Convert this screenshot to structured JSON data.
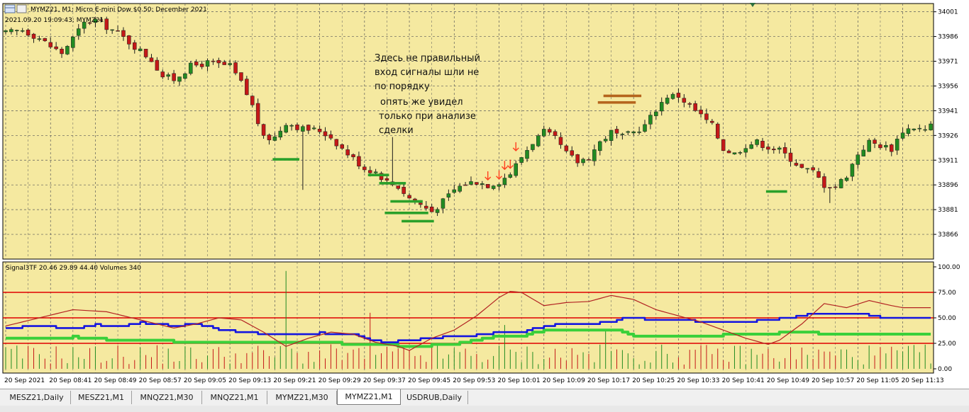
{
  "window": {
    "title": "MYMZ21, M1:  Micro E-mini Dow $0.50: December 2021",
    "last_tick": "2021.09.20 19:09:43; MYMZ21"
  },
  "annotation": {
    "lines_top": [
      "Здесь не правильный",
      "вход сигналы шли не",
      "по порядку"
    ],
    "lines_bottom": [
      "опять же увидел",
      "только при анализе",
      "сделки"
    ]
  },
  "colors": {
    "background": "#f5e9a0",
    "grid": "#5a5a5a",
    "bull": "#228b22",
    "bear": "#c41818",
    "wick": "#1c1c1c",
    "level_green": "#2aa02a",
    "level_brown": "#b5651d",
    "arrow": "#ff4020",
    "ind_red": "#b22222",
    "ind_blue": "#1414e0",
    "ind_green": "#3ad03a",
    "hline": "#e00000"
  },
  "chart_data": [
    {
      "type": "candlestick",
      "symbol": "MYMZ21",
      "timeframe": "M1",
      "y_ticks": [
        "34001",
        "33986",
        "33971",
        "33956",
        "33941",
        "33926",
        "33911",
        "33896",
        "33881",
        "33866"
      ],
      "ylim": [
        33851,
        34006
      ],
      "x_ticks": [
        "20 Sep 2021",
        "20 Sep 08:41",
        "20 Sep 08:49",
        "20 Sep 08:57",
        "20 Sep 09:05",
        "20 Sep 09:13",
        "20 Sep 09:21",
        "20 Sep 09:29",
        "20 Sep 09:37",
        "20 Sep 09:45",
        "20 Sep 09:53",
        "20 Sep 10:01",
        "20 Sep 10:09",
        "20 Sep 10:17",
        "20 Sep 10:25",
        "20 Sep 10:33",
        "20 Sep 10:41",
        "20 Sep 10:49",
        "20 Sep 10:57",
        "20 Sep 11:05",
        "20 Sep 11:13"
      ],
      "close_anchors": [
        [
          0,
          33988
        ],
        [
          3,
          33990
        ],
        [
          6,
          33985
        ],
        [
          8,
          33980
        ],
        [
          10,
          33976
        ],
        [
          12,
          33985
        ],
        [
          14,
          33994
        ],
        [
          16,
          33996
        ],
        [
          18,
          33992
        ],
        [
          20,
          33988
        ],
        [
          23,
          33980
        ],
        [
          26,
          33972
        ],
        [
          28,
          33962
        ],
        [
          30,
          33960
        ],
        [
          33,
          33968
        ],
        [
          36,
          33970
        ],
        [
          40,
          33968
        ],
        [
          42,
          33958
        ],
        [
          44,
          33944
        ],
        [
          46,
          33924
        ],
        [
          48,
          33925
        ],
        [
          50,
          33934
        ],
        [
          53,
          33930
        ],
        [
          56,
          33929
        ],
        [
          58,
          33925
        ],
        [
          60,
          33918
        ],
        [
          62,
          33912
        ],
        [
          64,
          33906
        ],
        [
          66,
          33904
        ],
        [
          68,
          33898
        ],
        [
          70,
          33895
        ],
        [
          72,
          33888
        ],
        [
          74,
          33884
        ],
        [
          76,
          33880
        ],
        [
          78,
          33886
        ],
        [
          80,
          33893
        ],
        [
          82,
          33897
        ],
        [
          84,
          33898
        ],
        [
          86,
          33896
        ],
        [
          88,
          33898
        ],
        [
          90,
          33903
        ],
        [
          92,
          33913
        ],
        [
          94,
          33922
        ],
        [
          96,
          33928
        ],
        [
          98,
          33924
        ],
        [
          100,
          33915
        ],
        [
          102,
          33910
        ],
        [
          104,
          33913
        ],
        [
          106,
          33922
        ],
        [
          108,
          33928
        ],
        [
          110,
          33925
        ],
        [
          112,
          33928
        ],
        [
          114,
          33932
        ],
        [
          116,
          33942
        ],
        [
          118,
          33950
        ],
        [
          120,
          33950
        ],
        [
          122,
          33944
        ],
        [
          124,
          33938
        ],
        [
          126,
          33932
        ],
        [
          128,
          33918
        ],
        [
          130,
          33915
        ],
        [
          132,
          33920
        ],
        [
          134,
          33922
        ],
        [
          136,
          33919
        ],
        [
          138,
          33917
        ],
        [
          140,
          33912
        ],
        [
          142,
          33906
        ],
        [
          144,
          33904
        ],
        [
          146,
          33896
        ],
        [
          148,
          33895
        ],
        [
          150,
          33902
        ],
        [
          152,
          33915
        ],
        [
          154,
          33922
        ],
        [
          156,
          33920
        ],
        [
          158,
          33918
        ],
        [
          160,
          33929
        ],
        [
          162,
          33931
        ],
        [
          164,
          33929
        ],
        [
          165,
          33932
        ]
      ],
      "level_marks": [
        {
          "bar_from": 48,
          "bar_to": 52,
          "price": 33911.5,
          "color": "green"
        },
        {
          "bar_from": 65,
          "bar_to": 68,
          "price": 33902,
          "color": "green"
        },
        {
          "bar_from": 67,
          "bar_to": 71,
          "price": 33897,
          "color": "green"
        },
        {
          "bar_from": 69,
          "bar_to": 74,
          "price": 33886,
          "color": "green"
        },
        {
          "bar_from": 68,
          "bar_to": 75,
          "price": 33879,
          "color": "green"
        },
        {
          "bar_from": 71,
          "bar_to": 76,
          "price": 33874,
          "color": "green"
        },
        {
          "bar_from": 106,
          "bar_to": 112,
          "price": 33946,
          "color": "brown"
        },
        {
          "bar_from": 107,
          "bar_to": 113,
          "price": 33950,
          "color": "brown"
        },
        {
          "bar_from": 136,
          "bar_to": 139,
          "price": 33892,
          "color": "green"
        }
      ],
      "signal_arrows_bar": [
        86,
        88,
        89,
        90,
        91
      ]
    },
    {
      "type": "line",
      "title": "Signal3TF 20.46 29.89 44.40 Volumes 340",
      "y_ticks": [
        "100.00",
        "75.00",
        "50.00",
        "25.00",
        "0.00"
      ],
      "ylim": [
        0,
        100
      ],
      "hlines": [
        75,
        50,
        25
      ],
      "series": [
        {
          "name": "Signal3TF",
          "role": "red",
          "anchors": [
            [
              0,
              42
            ],
            [
              6,
              50
            ],
            [
              12,
              58
            ],
            [
              18,
              56
            ],
            [
              24,
              48
            ],
            [
              30,
              40
            ],
            [
              34,
              44
            ],
            [
              38,
              50
            ],
            [
              42,
              48
            ],
            [
              46,
              36
            ],
            [
              50,
              22
            ],
            [
              54,
              30
            ],
            [
              58,
              36
            ],
            [
              62,
              34
            ],
            [
              66,
              26
            ],
            [
              70,
              22
            ],
            [
              72,
              18
            ],
            [
              76,
              30
            ],
            [
              80,
              38
            ],
            [
              84,
              52
            ],
            [
              88,
              70
            ],
            [
              90,
              76
            ],
            [
              92,
              75
            ],
            [
              96,
              62
            ],
            [
              100,
              65
            ],
            [
              104,
              66
            ],
            [
              108,
              72
            ],
            [
              112,
              68
            ],
            [
              116,
              58
            ],
            [
              120,
              52
            ],
            [
              124,
              46
            ],
            [
              128,
              38
            ],
            [
              132,
              30
            ],
            [
              136,
              24
            ],
            [
              138,
              28
            ],
            [
              142,
              44
            ],
            [
              146,
              64
            ],
            [
              150,
              60
            ],
            [
              154,
              67
            ],
            [
              158,
              62
            ],
            [
              160,
              60
            ]
          ]
        },
        {
          "name": "Signal3TF",
          "role": "blue",
          "anchors": [
            [
              0,
              39
            ],
            [
              4,
              42
            ],
            [
              12,
              40
            ],
            [
              16,
              43
            ],
            [
              20,
              41
            ],
            [
              24,
              45
            ],
            [
              30,
              42
            ],
            [
              34,
              44
            ],
            [
              38,
              38
            ],
            [
              42,
              36
            ],
            [
              46,
              34
            ],
            [
              50,
              33
            ],
            [
              56,
              35
            ],
            [
              62,
              34
            ],
            [
              64,
              29
            ],
            [
              68,
              26
            ],
            [
              72,
              28
            ],
            [
              76,
              30
            ],
            [
              80,
              32
            ],
            [
              84,
              33
            ],
            [
              88,
              36
            ],
            [
              92,
              36
            ],
            [
              96,
              42
            ],
            [
              100,
              44
            ],
            [
              104,
              44
            ],
            [
              108,
              46
            ],
            [
              110,
              50
            ],
            [
              116,
              48
            ],
            [
              120,
              48
            ],
            [
              124,
              46
            ],
            [
              128,
              45
            ],
            [
              132,
              46
            ],
            [
              136,
              48
            ],
            [
              140,
              50
            ],
            [
              144,
              54
            ],
            [
              148,
              53
            ],
            [
              152,
              54
            ],
            [
              156,
              50
            ],
            [
              158,
              49
            ]
          ]
        },
        {
          "name": "Signal3TF",
          "role": "green",
          "anchors": [
            [
              0,
              30
            ],
            [
              8,
              30
            ],
            [
              12,
              31
            ],
            [
              20,
              28
            ],
            [
              26,
              28
            ],
            [
              32,
              26
            ],
            [
              40,
              25
            ],
            [
              48,
              25
            ],
            [
              56,
              26
            ],
            [
              62,
              24
            ],
            [
              66,
              24
            ],
            [
              72,
              22
            ],
            [
              80,
              24
            ],
            [
              84,
              28
            ],
            [
              88,
              32
            ],
            [
              92,
              32
            ],
            [
              96,
              38
            ],
            [
              100,
              38
            ],
            [
              104,
              38
            ],
            [
              108,
              38
            ],
            [
              110,
              36
            ],
            [
              112,
              32
            ],
            [
              120,
              32
            ],
            [
              128,
              33
            ],
            [
              136,
              34
            ],
            [
              140,
              36
            ],
            [
              144,
              35
            ],
            [
              152,
              34
            ],
            [
              158,
              33
            ]
          ]
        },
        {
          "name": "Volumes",
          "role": "volume",
          "spikes": {
            "50": 96,
            "65": 55,
            "89": 43,
            "107": 38
          }
        }
      ]
    }
  ],
  "tabs": [
    {
      "label": "MESZ21,Daily",
      "active": false
    },
    {
      "label": "MESZ21,M1",
      "active": false
    },
    {
      "label": "MNQZ21,M30",
      "active": false
    },
    {
      "label": "MNQZ21,M1",
      "active": false
    },
    {
      "label": "MYMZ21,M30",
      "active": false
    },
    {
      "label": "MYMZ21,M1",
      "active": true
    },
    {
      "label": "USDRUB,Daily",
      "active": false
    }
  ]
}
